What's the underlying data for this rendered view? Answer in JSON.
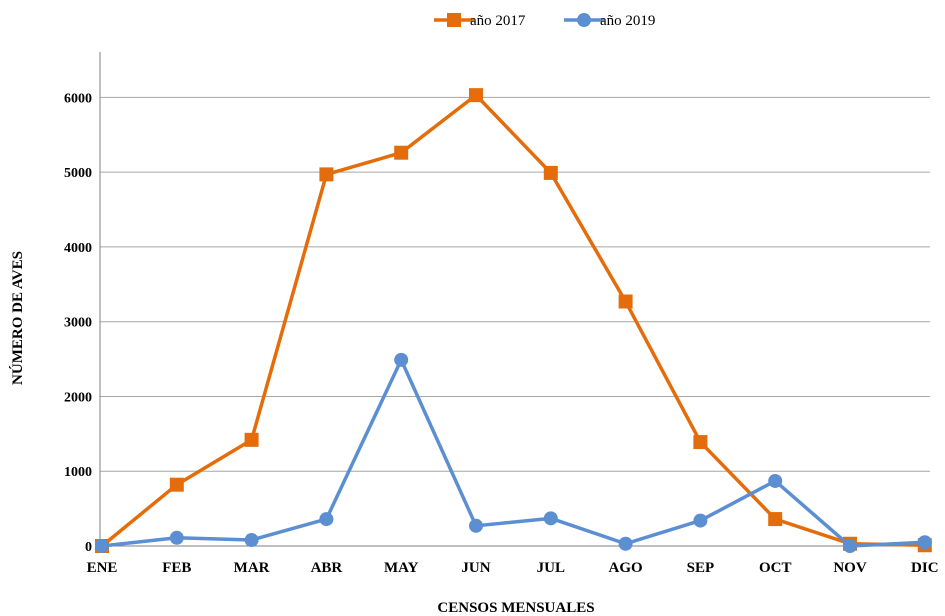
{
  "chart_data": {
    "type": "line",
    "categories": [
      "ENE",
      "FEB",
      "MAR",
      "ABR",
      "MAY",
      "JUN",
      "JUL",
      "AGO",
      "SEP",
      "OCT",
      "NOV",
      "DIC"
    ],
    "series": [
      {
        "name": "año 2017",
        "color": "#e46c0a",
        "marker": "square",
        "values": [
          0,
          820,
          1420,
          4970,
          5260,
          6030,
          4990,
          3270,
          1390,
          360,
          30,
          10
        ]
      },
      {
        "name": "año 2019",
        "color": "#5b8fd1",
        "marker": "circle",
        "values": [
          0,
          110,
          80,
          360,
          2490,
          270,
          370,
          30,
          340,
          870,
          0,
          50
        ]
      }
    ],
    "xlabel": "CENSOS MENSUALES",
    "ylabel": "NÚMERO DE AVES",
    "ylim": [
      0,
      6500
    ],
    "yticks": [
      0,
      1000,
      2000,
      3000,
      4000,
      5000,
      6000
    ],
    "grid": true,
    "legend": "top-center"
  }
}
